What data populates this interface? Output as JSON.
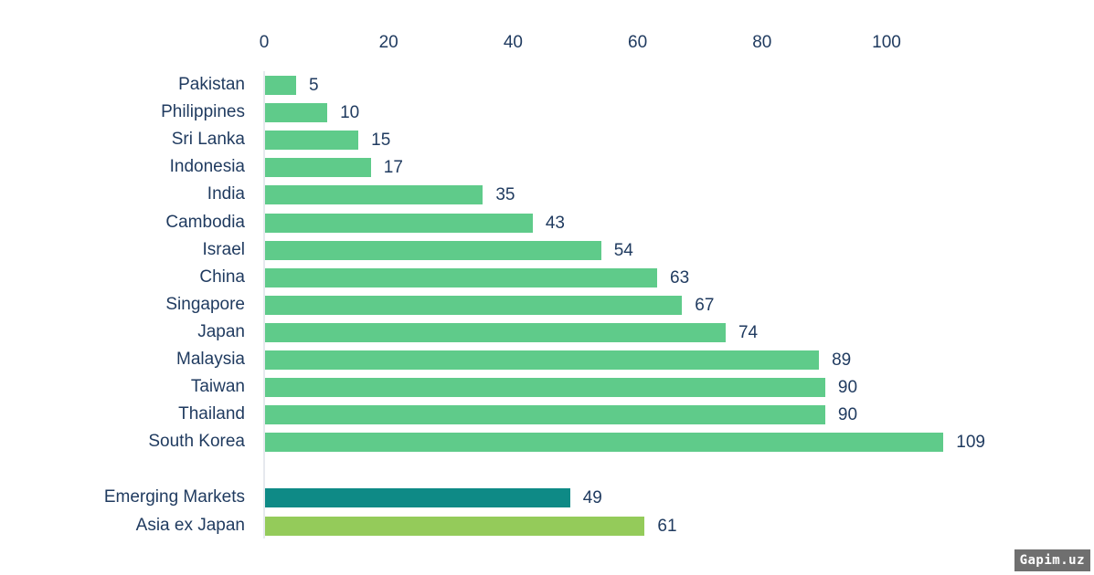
{
  "chart_data": {
    "type": "bar",
    "orientation": "horizontal",
    "title": "",
    "xlabel": "",
    "ylabel": "",
    "xlim": [
      0,
      110
    ],
    "x_ticks": [
      "0",
      "20",
      "40",
      "60",
      "80",
      "100"
    ],
    "grid": false,
    "legend": null,
    "categories": [
      "Pakistan",
      "Philippines",
      "Sri Lanka",
      "Indonesia",
      "India",
      "Cambodia",
      "Israel",
      "China",
      "Singapore",
      "Japan",
      "Malaysia",
      "Taiwan",
      "Thailand",
      "South Korea",
      "Emerging Markets",
      "Asia ex Japan"
    ],
    "values": [
      5,
      10,
      15,
      17,
      35,
      43,
      54,
      63,
      67,
      74,
      89,
      90,
      90,
      109,
      49,
      61
    ],
    "value_labels": [
      "5",
      "10",
      "15",
      "17",
      "35",
      "43",
      "54",
      "63",
      "67",
      "74",
      "89",
      "90",
      "90",
      "109",
      "49",
      "61"
    ],
    "bar_colors": [
      "#5fcb8a",
      "#5fcb8a",
      "#5fcb8a",
      "#5fcb8a",
      "#5fcb8a",
      "#5fcb8a",
      "#5fcb8a",
      "#5fcb8a",
      "#5fcb8a",
      "#5fcb8a",
      "#5fcb8a",
      "#5fcb8a",
      "#5fcb8a",
      "#5fcb8a",
      "#0e8a86",
      "#94cb5a"
    ]
  },
  "colors": {
    "country_bar": "#5fcb8a",
    "emerging_markets_bar": "#0e8a86",
    "asia_ex_japan_bar": "#94cb5a",
    "text": "#1f3a5f"
  },
  "watermark": "Gapim.uz"
}
